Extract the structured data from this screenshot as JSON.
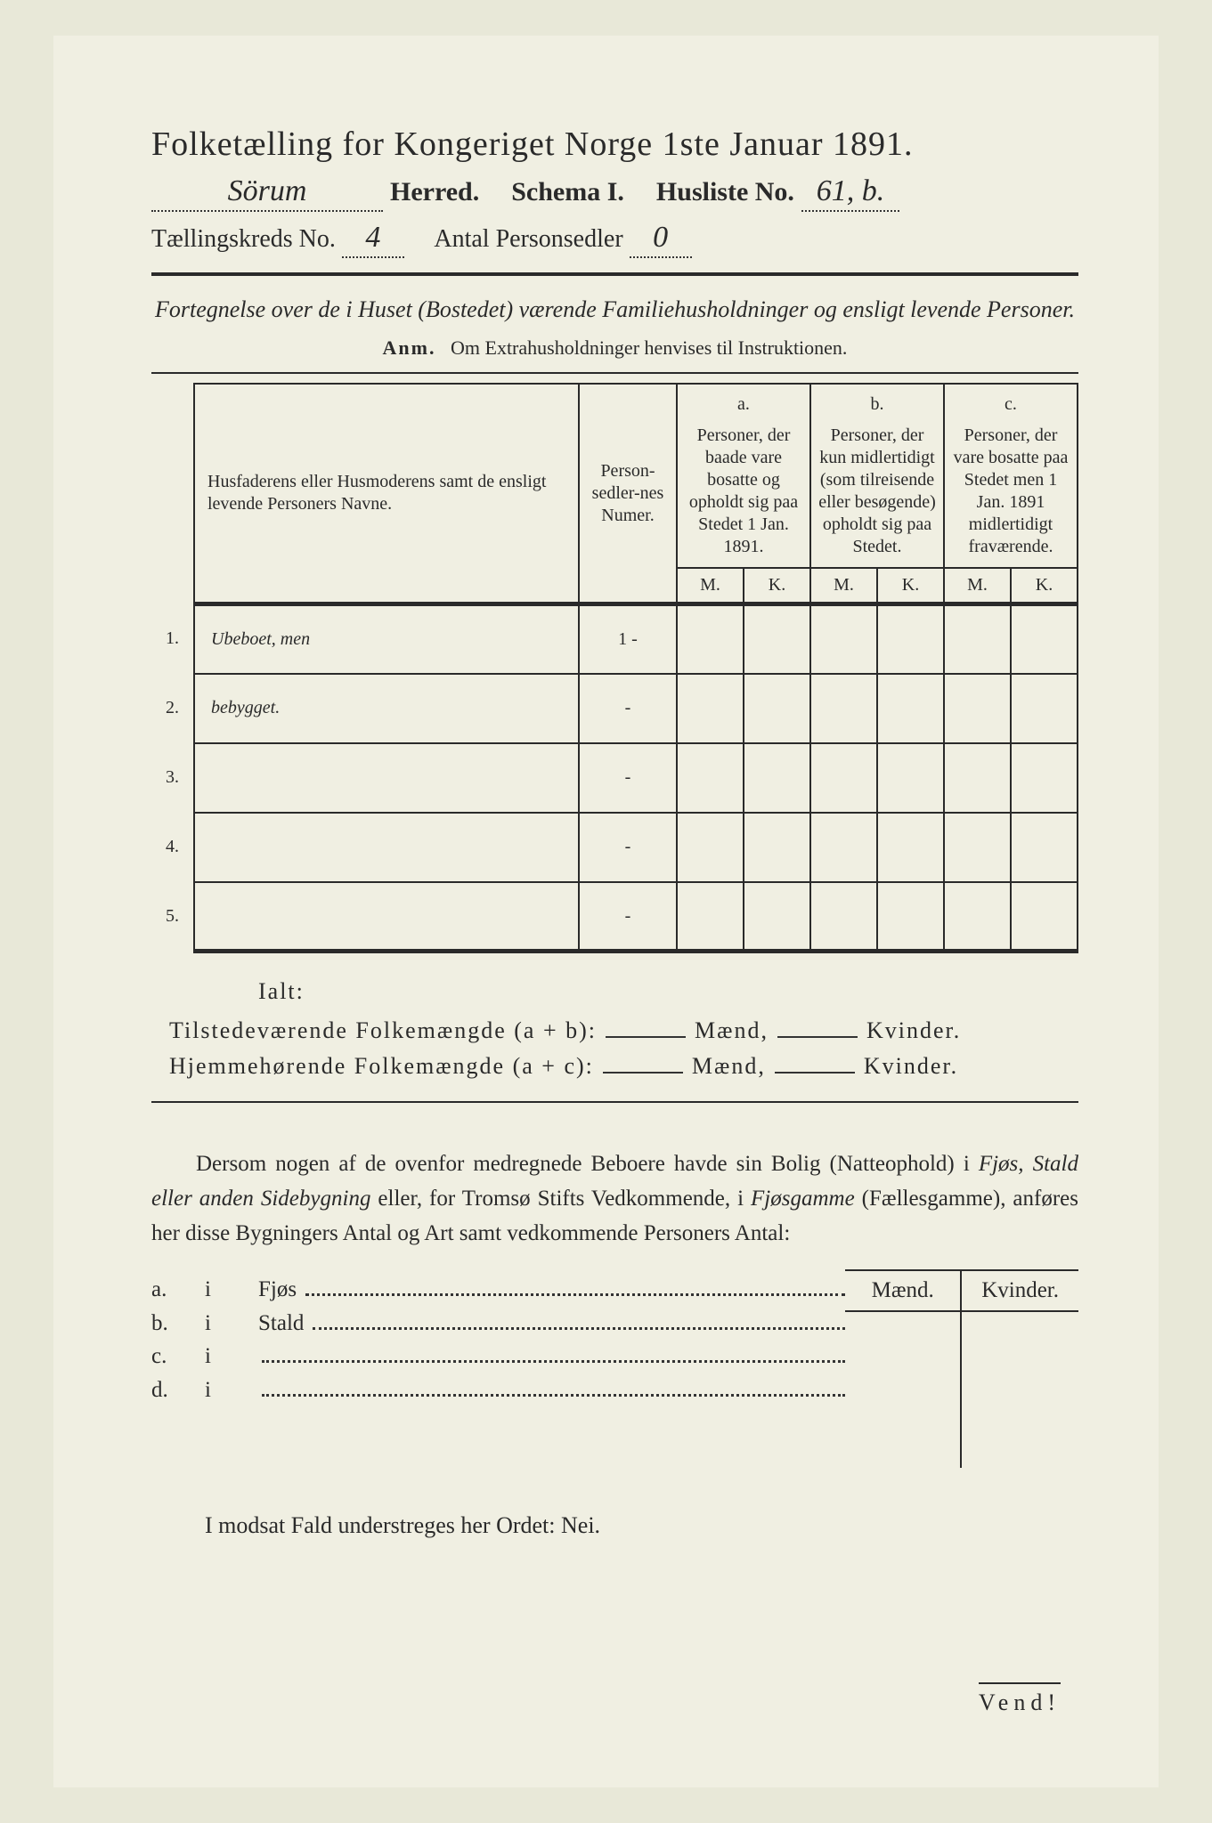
{
  "colors": {
    "page_bg": "#f0efe2",
    "outer_bg": "#e8e8d8",
    "ink": "#2a2a2a"
  },
  "header": {
    "title": "Folketælling for Kongeriget Norge 1ste Januar 1891.",
    "herred_value": "Sörum",
    "herred_label": "Herred.",
    "schema_label": "Schema I.",
    "husliste_label": "Husliste No.",
    "husliste_value": "61, b.",
    "kreds_label": "Tællingskreds No.",
    "kreds_value": "4",
    "antal_label": "Antal Personsedler",
    "antal_value": "0"
  },
  "fortegnelse": {
    "line": "Fortegnelse over de i Huset (Bostedet) værende Familiehusholdninger og ensligt levende Personer.",
    "anm_label": "Anm.",
    "anm_text": "Om Extrahusholdninger henvises til Instruktionen."
  },
  "table": {
    "col_name": "Husfaderens eller Husmoderens samt de ensligt levende Personers Navne.",
    "col_ps": "Person-sedler-nes Numer.",
    "col_a_label": "a.",
    "col_a": "Personer, der baade vare bosatte og opholdt sig paa Stedet 1 Jan. 1891.",
    "col_b_label": "b.",
    "col_b": "Personer, der kun midlertidigt (som tilreisende eller besøgende) opholdt sig paa Stedet.",
    "col_c_label": "c.",
    "col_c": "Personer, der vare bosatte paa Stedet men 1 Jan. 1891 midlertidigt fraværende.",
    "M": "M.",
    "K": "K.",
    "rows": [
      {
        "n": "1.",
        "name": "Ubeboet, men",
        "ps": "1 -"
      },
      {
        "n": "2.",
        "name": "bebygget.",
        "ps": "-"
      },
      {
        "n": "3.",
        "name": "",
        "ps": "-"
      },
      {
        "n": "4.",
        "name": "",
        "ps": "-"
      },
      {
        "n": "5.",
        "name": "",
        "ps": "-"
      }
    ]
  },
  "totals": {
    "ialt": "Ialt:",
    "tilstede": "Tilstedeværende Folkemængde (a + b):",
    "hjemme": "Hjemmehørende Folkemængde (a + c):",
    "maend": "Mænd,",
    "kvinder": "Kvinder."
  },
  "para": {
    "p1a": "Dersom nogen af de ovenfor medregnede Beboere havde sin Bolig (Natteophold) i ",
    "p1b": "Fjøs, Stald eller anden Sidebygning",
    "p1c": " eller, for Tromsø Stifts Vedkommende, i ",
    "p1d": "Fjøsgamme",
    "p1e": " (Fællesgamme), anføres her disse Bygningers Antal og Art samt vedkommende Personers Antal:"
  },
  "mk": {
    "maend": "Mænd.",
    "kvinder": "Kvinder."
  },
  "abcd": {
    "a": "a.",
    "b": "b.",
    "c": "c.",
    "d": "d.",
    "i": "i",
    "fjos": "Fjøs",
    "stald": "Stald"
  },
  "modsat": "I modsat Fald understreges her Ordet: Nei.",
  "vend": "Vend!"
}
